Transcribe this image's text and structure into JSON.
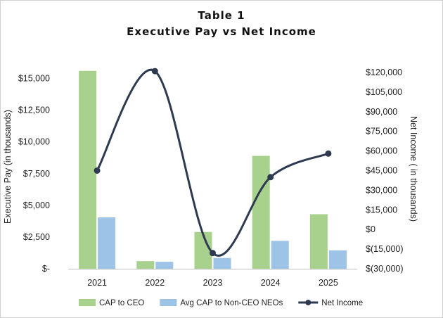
{
  "chart_data": {
    "type": "bar",
    "title": "Table 1",
    "subtitle": "Executive Pay vs Net Income",
    "categories": [
      "2021",
      "2022",
      "2023",
      "2024",
      "2025"
    ],
    "series": [
      {
        "name": "CAP to CEO",
        "type": "bar",
        "axis": "left",
        "color": "#a9d18e",
        "values": [
          15600,
          600,
          2900,
          8900,
          4300
        ]
      },
      {
        "name": "Avg CAP to Non-CEO NEOs",
        "type": "bar",
        "axis": "left",
        "color": "#9dc3e6",
        "values": [
          4050,
          550,
          850,
          2200,
          1450
        ]
      },
      {
        "name": "Net Income",
        "type": "line",
        "axis": "right",
        "color": "#2e3a4f",
        "values": [
          45000,
          121000,
          -18000,
          40000,
          58000
        ]
      }
    ],
    "ylabel": "Executive Pay (in thousands)",
    "y2label": "Net Income ( in thousands)",
    "ylim": [
      0,
      16250
    ],
    "y2lim": [
      -30000,
      127500
    ],
    "yticks": [
      0,
      2500,
      5000,
      7500,
      10000,
      12500,
      15000
    ],
    "ytick_labels": [
      "$-",
      "$2,500",
      "$5,000",
      "$7,500",
      "$10,000",
      "$12,500",
      "$15,000"
    ],
    "y2ticks": [
      -30000,
      -15000,
      0,
      15000,
      30000,
      45000,
      60000,
      75000,
      90000,
      105000,
      120000
    ],
    "y2tick_labels": [
      "$(30,000)",
      "$(15,000)",
      "$0",
      "$15,000",
      "$30,000",
      "$45,000",
      "$60,000",
      "$75,000",
      "$90,000",
      "$105,000",
      "$120,000"
    ],
    "grid": false,
    "legend": "bottom"
  }
}
